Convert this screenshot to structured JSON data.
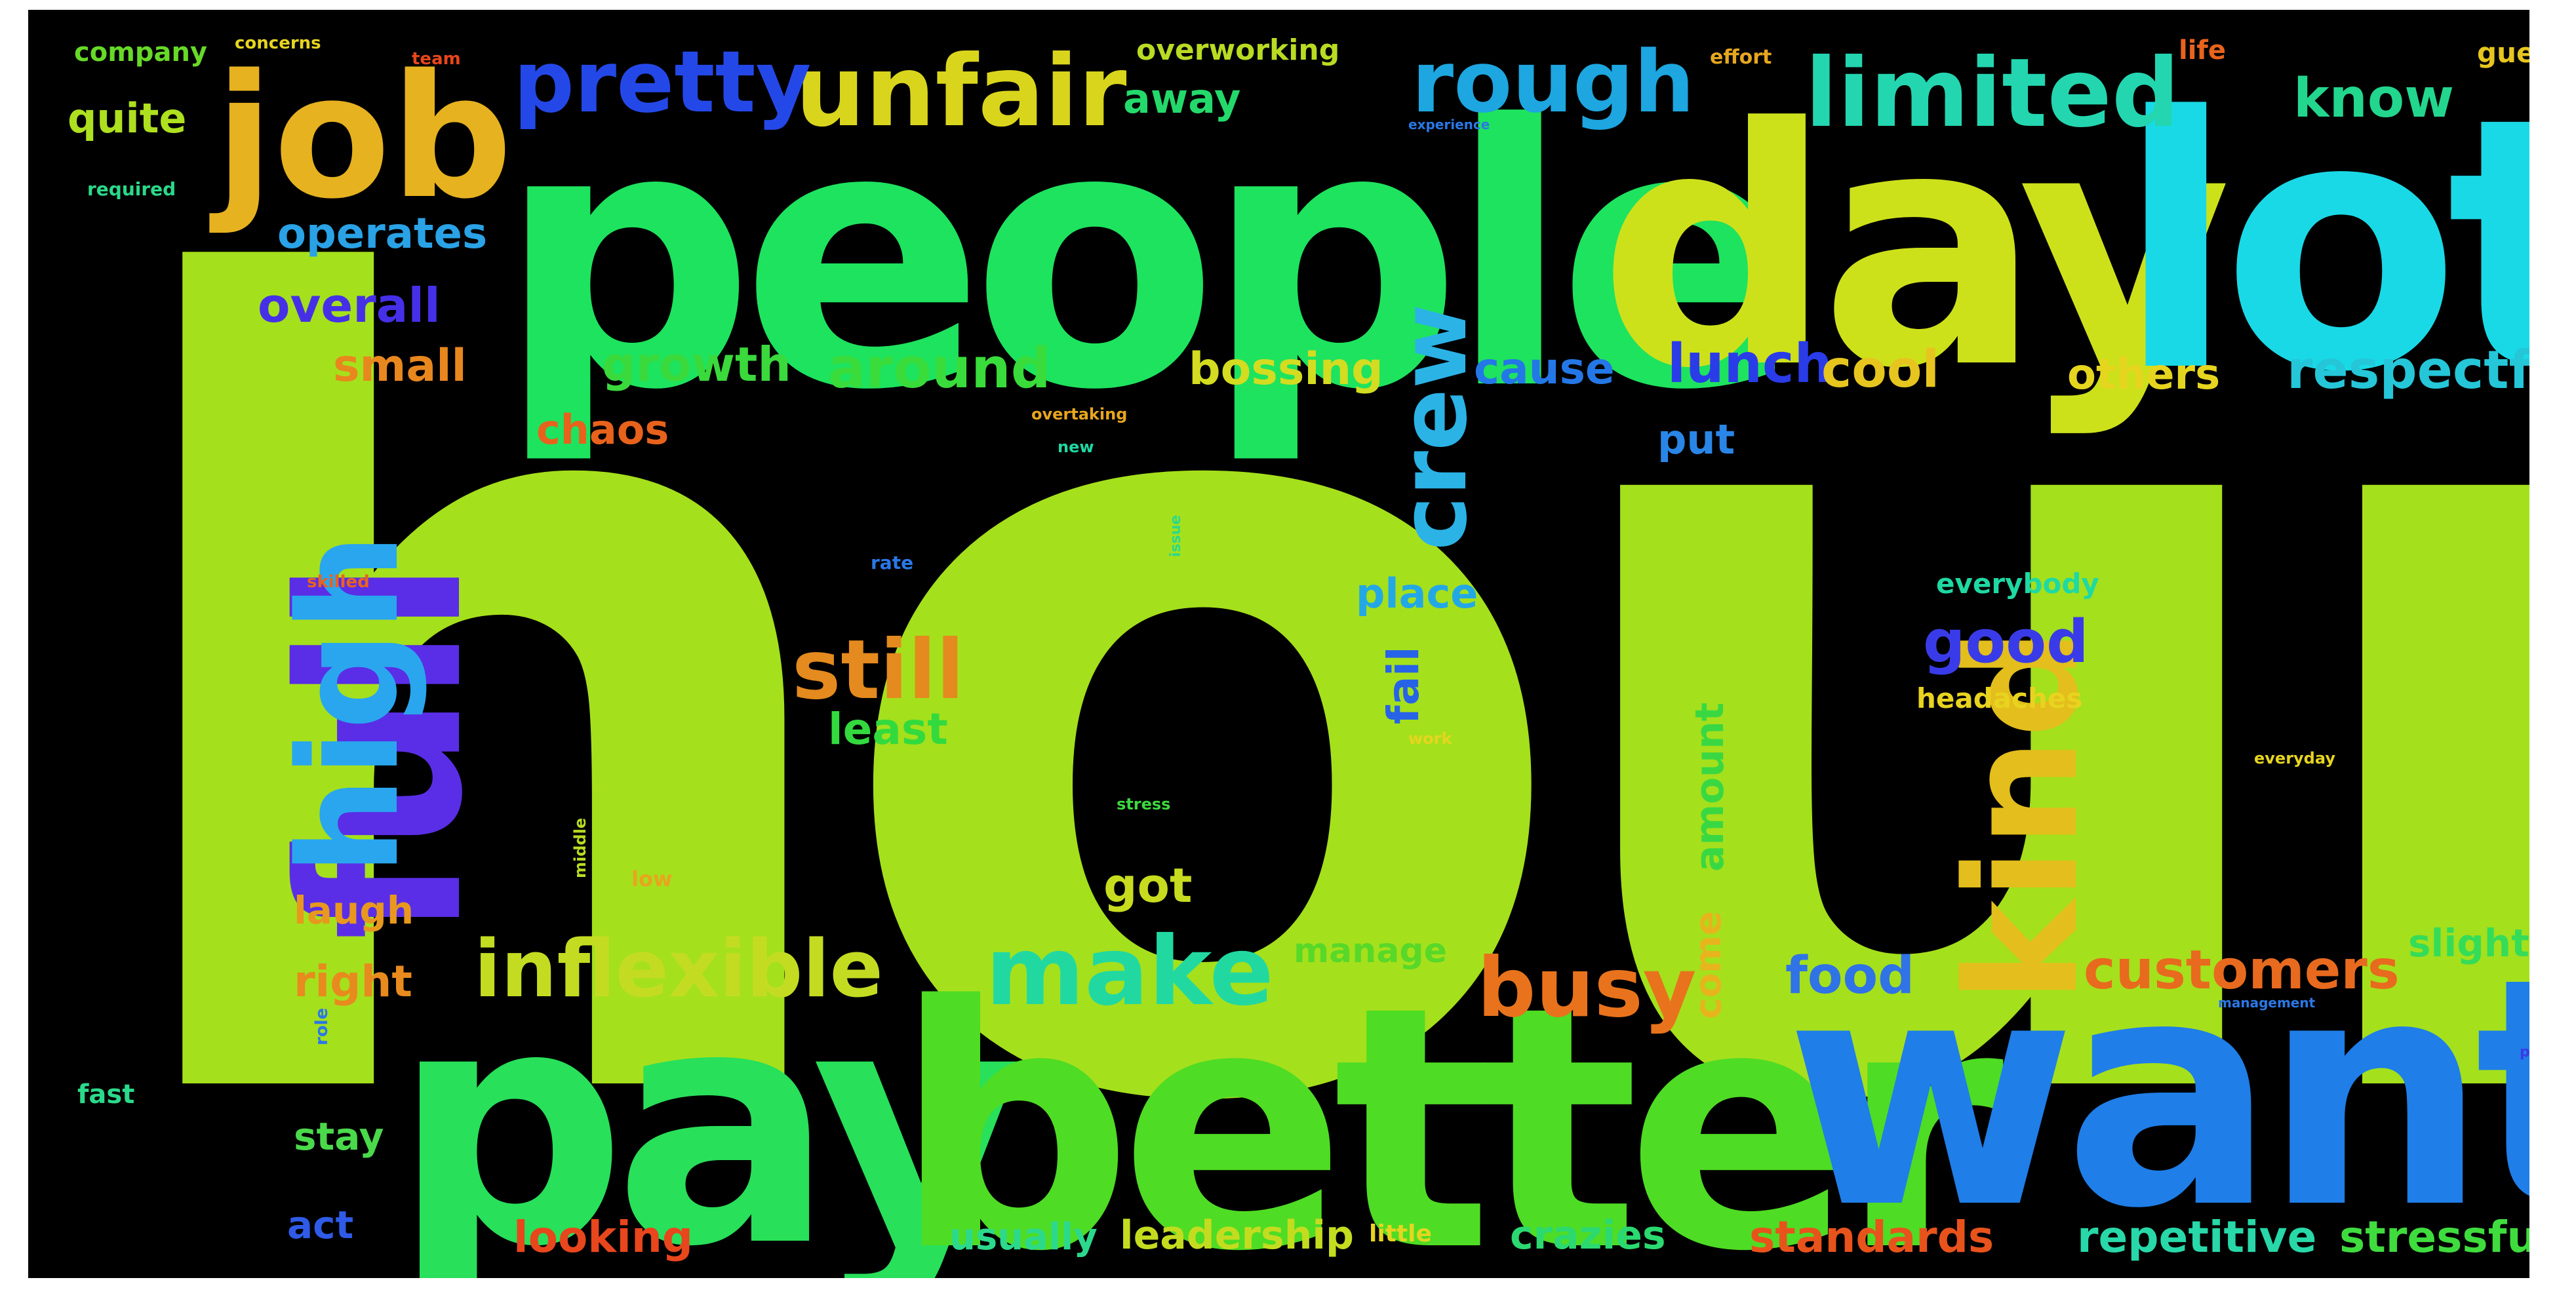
{
  "background_color": "#000000",
  "words": [
    {
      "text": "hours",
      "color": "#a5e01c"
    },
    {
      "text": "people",
      "color": "#1ee35e"
    },
    {
      "text": "day",
      "color": "#cde11b"
    },
    {
      "text": "lot",
      "color": "#1ad9e6"
    },
    {
      "text": "job",
      "color": "#e6b21f"
    },
    {
      "text": "pay",
      "color": "#28e05a"
    },
    {
      "text": "better",
      "color": "#4fdc24"
    },
    {
      "text": "want",
      "color": "#1f7ee8"
    },
    {
      "text": "full",
      "color": "#5a2ee6"
    },
    {
      "text": "unfair",
      "color": "#d9d51c"
    },
    {
      "text": "pretty",
      "color": "#2448e8"
    },
    {
      "text": "rough",
      "color": "#1da6df"
    },
    {
      "text": "limited",
      "color": "#23d6b0"
    },
    {
      "text": "kind",
      "color": "#e3be1c"
    },
    {
      "text": "high",
      "color": "#2aa6ee"
    },
    {
      "text": "crew",
      "color": "#2bb3e6"
    },
    {
      "text": "make",
      "color": "#21d9a0"
    },
    {
      "text": "inflexible",
      "color": "#c3dc22"
    },
    {
      "text": "still",
      "color": "#e48a1e"
    },
    {
      "text": "busy",
      "color": "#e8731c"
    },
    {
      "text": "customers",
      "color": "#e86a1e"
    },
    {
      "text": "respectful",
      "color": "#25c6d8"
    },
    {
      "text": "know",
      "color": "#23d68e"
    },
    {
      "text": "good",
      "color": "#3a3be8"
    },
    {
      "text": "around",
      "color": "#39dc3a"
    },
    {
      "text": "growth",
      "color": "#3ad93c"
    },
    {
      "text": "lunch",
      "color": "#2a3ce8"
    },
    {
      "text": "cool",
      "color": "#e6c51f"
    },
    {
      "text": "bossing",
      "color": "#d3dc20"
    },
    {
      "text": "cause",
      "color": "#2477e6"
    },
    {
      "text": "others",
      "color": "#e6d51f"
    },
    {
      "text": "overall",
      "color": "#4530e8"
    },
    {
      "text": "operates",
      "color": "#2aa2e6"
    },
    {
      "text": "small",
      "color": "#e8871e"
    },
    {
      "text": "quite",
      "color": "#aee01f"
    },
    {
      "text": "away",
      "color": "#24d96b"
    },
    {
      "text": "chaos",
      "color": "#e8621c"
    },
    {
      "text": "put",
      "color": "#2a86e6"
    },
    {
      "text": "place",
      "color": "#23a8e6"
    },
    {
      "text": "fail",
      "color": "#2763e6"
    },
    {
      "text": "least",
      "color": "#33da3e"
    },
    {
      "text": "got",
      "color": "#c7dc1f"
    },
    {
      "text": "amount",
      "color": "#39d843"
    },
    {
      "text": "come",
      "color": "#e8b41e"
    },
    {
      "text": "food",
      "color": "#2f73e6"
    },
    {
      "text": "manage",
      "color": "#58d828"
    },
    {
      "text": "slightly",
      "color": "#35dc58"
    },
    {
      "text": "right",
      "color": "#e88a1e"
    },
    {
      "text": "laugh",
      "color": "#e8981e"
    },
    {
      "text": "stay",
      "color": "#4bd94c"
    },
    {
      "text": "act",
      "color": "#2f5be8"
    },
    {
      "text": "looking",
      "color": "#e8461c"
    },
    {
      "text": "usually",
      "color": "#2cd98c"
    },
    {
      "text": "leadership",
      "color": "#c4dc1f"
    },
    {
      "text": "crazies",
      "color": "#2bd970"
    },
    {
      "text": "standards",
      "color": "#e8531c"
    },
    {
      "text": "repetitive",
      "color": "#28d8a8"
    },
    {
      "text": "stressful",
      "color": "#3fdc3e"
    },
    {
      "text": "headaches",
      "color": "#e8d31f"
    },
    {
      "text": "everybody",
      "color": "#1fd9a3"
    },
    {
      "text": "overworking",
      "color": "#b8dc22"
    },
    {
      "text": "company",
      "color": "#67d928"
    },
    {
      "text": "fast",
      "color": "#2ad98a"
    },
    {
      "text": "life",
      "color": "#e8631c"
    },
    {
      "text": "guest",
      "color": "#e6c51f"
    },
    {
      "text": "little",
      "color": "#e6d51f"
    },
    {
      "text": "effort",
      "color": "#e6a71f"
    }
  ],
  "tiny_words": [
    {
      "text": "concerns",
      "color": "#e6d51f"
    },
    {
      "text": "team",
      "color": "#e8461c"
    },
    {
      "text": "required",
      "color": "#2ad98a"
    },
    {
      "text": "overtaking",
      "color": "#e8a51f"
    },
    {
      "text": "new",
      "color": "#1fd9a3"
    },
    {
      "text": "rate",
      "color": "#2a78e6"
    },
    {
      "text": "skilled",
      "color": "#e8631c"
    },
    {
      "text": "work",
      "color": "#e6d51f"
    },
    {
      "text": "stress",
      "color": "#3cd93e"
    },
    {
      "text": "middle",
      "color": "#b8dc22"
    },
    {
      "text": "low",
      "color": "#e8a51f"
    },
    {
      "text": "issue",
      "color": "#2ad98a"
    },
    {
      "text": "role",
      "color": "#2a78e6"
    },
    {
      "text": "pace",
      "color": "#3a3be8"
    },
    {
      "text": "everyday",
      "color": "#e6d51f"
    },
    {
      "text": "experience",
      "color": "#2a78e6"
    },
    {
      "text": "management",
      "color": "#2a78e6"
    }
  ]
}
